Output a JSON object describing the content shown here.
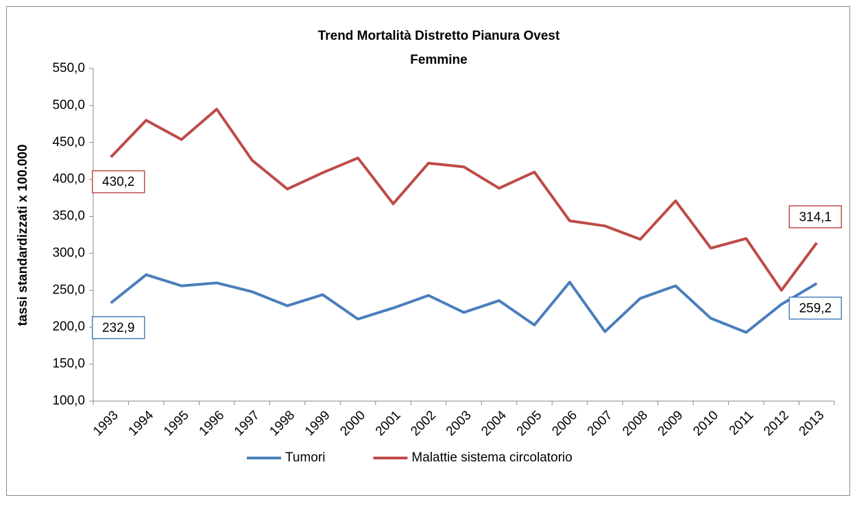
{
  "chart_data": {
    "type": "line",
    "title": "Trend Mortalità Distretto Pianura Ovest",
    "subtitle": "Femmine",
    "y_label": "tassi standardizzati x 100.000",
    "categories": [
      "1993",
      "1994",
      "1995",
      "1996",
      "1997",
      "1998",
      "1999",
      "2000",
      "2001",
      "2002",
      "2003",
      "2004",
      "2005",
      "2006",
      "2007",
      "2008",
      "2009",
      "2010",
      "2011",
      "2012",
      "2013"
    ],
    "series": [
      {
        "name": "Tumori",
        "color": "#4a7ebb",
        "values": [
          232.9,
          271,
          256,
          260,
          248,
          229,
          244,
          211,
          226,
          243,
          220,
          236,
          203,
          261,
          194,
          239,
          256,
          212,
          193,
          231,
          259.2
        ],
        "value_labels": [
          "232,9",
          null,
          null,
          null,
          null,
          null,
          null,
          null,
          null,
          null,
          null,
          null,
          null,
          null,
          null,
          null,
          null,
          null,
          null,
          null,
          "259,2"
        ]
      },
      {
        "name": "Malattie sistema circolatorio",
        "color": "#be4b48",
        "values": [
          430.2,
          480,
          454,
          495,
          426,
          387,
          409,
          429,
          367,
          422,
          417,
          388,
          410,
          344,
          337,
          319,
          371,
          307,
          320,
          250,
          314.1
        ],
        "value_labels": [
          "430,2",
          null,
          null,
          null,
          null,
          null,
          null,
          null,
          null,
          null,
          null,
          null,
          null,
          null,
          null,
          null,
          null,
          null,
          null,
          null,
          "314,1"
        ]
      }
    ],
    "ylim": [
      100,
      550
    ],
    "yticks": [
      {
        "value": 100,
        "label": "100,0"
      },
      {
        "value": 150,
        "label": "150,0"
      },
      {
        "value": 200,
        "label": "200,0"
      },
      {
        "value": 250,
        "label": "250,0"
      },
      {
        "value": 300,
        "label": "300,0"
      },
      {
        "value": 350,
        "label": "350,0"
      },
      {
        "value": 400,
        "label": "400,0"
      },
      {
        "value": 450,
        "label": "450,0"
      },
      {
        "value": 500,
        "label": "500,0"
      },
      {
        "value": 550,
        "label": "550,0"
      }
    ],
    "grid": false,
    "legend": "bottom"
  }
}
